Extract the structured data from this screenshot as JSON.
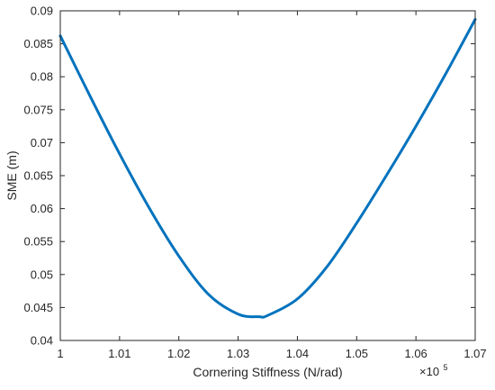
{
  "chart_data": {
    "type": "line",
    "title": "",
    "xlabel": "Cornering Stiffness (N/rad)",
    "ylabel": "SME (m)",
    "x_exponent_label": {
      "base": "×10",
      "power": "5"
    },
    "xlim": [
      1.0,
      1.07
    ],
    "ylim": [
      0.04,
      0.09
    ],
    "xticks": [
      "1",
      "1.01",
      "1.02",
      "1.03",
      "1.04",
      "1.05",
      "1.06",
      "1.07"
    ],
    "yticks": [
      "0.04",
      "0.045",
      "0.05",
      "0.055",
      "0.06",
      "0.065",
      "0.07",
      "0.075",
      "0.08",
      "0.085",
      "0.09"
    ],
    "grid": false,
    "series": [
      {
        "color": "#0072bd",
        "x": [
          1.0,
          1.005,
          1.01,
          1.015,
          1.02,
          1.025,
          1.03,
          1.0335,
          1.035,
          1.04,
          1.045,
          1.05,
          1.055,
          1.06,
          1.065,
          1.07
        ],
        "y": [
          0.0862,
          0.0771,
          0.0683,
          0.0601,
          0.0528,
          0.047,
          0.044,
          0.0436,
          0.0438,
          0.0463,
          0.0512,
          0.0578,
          0.065,
          0.0725,
          0.0804,
          0.0887
        ]
      }
    ]
  }
}
